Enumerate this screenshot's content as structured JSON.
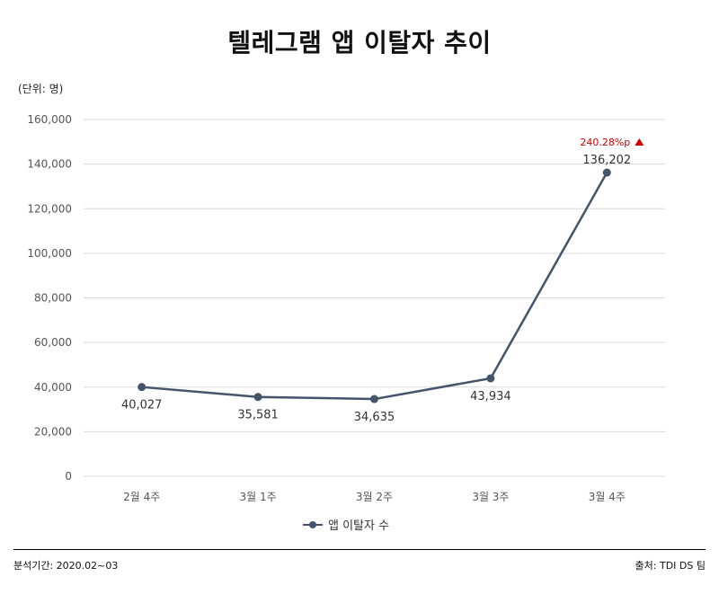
{
  "title": "텔레그램 앱 이탈자 추이",
  "unit_label": "(단위: 명)",
  "footer": {
    "period": "분석기간: 2020.02~03",
    "source": "출처: TDI DS 팀"
  },
  "annotation": {
    "change_text": "240.28%p",
    "direction": "up",
    "color": "#d40000"
  },
  "colors": {
    "series": "#44546a",
    "grid": "#d9d9d9"
  },
  "chart_data": {
    "type": "line",
    "title": "텔레그램 앱 이탈자 추이",
    "xlabel": "",
    "ylabel": "(단위: 명)",
    "categories": [
      "2월 4주",
      "3월 1주",
      "3월 2주",
      "3월 3주",
      "3월 4주"
    ],
    "series": [
      {
        "name": "앱 이탈자 수",
        "values": [
          40027,
          35581,
          34635,
          43934,
          136202
        ]
      }
    ],
    "data_labels": [
      "40,027",
      "35,581",
      "34,635",
      "43,934",
      "136,202"
    ],
    "ylim": [
      0,
      160000
    ],
    "yticks": [
      0,
      20000,
      40000,
      60000,
      80000,
      100000,
      120000,
      140000,
      160000
    ],
    "ytick_labels": [
      "0",
      "20,000",
      "40,000",
      "60,000",
      "80,000",
      "100,000",
      "120,000",
      "140,000",
      "160,000"
    ],
    "grid": true,
    "legend": "bottom"
  }
}
